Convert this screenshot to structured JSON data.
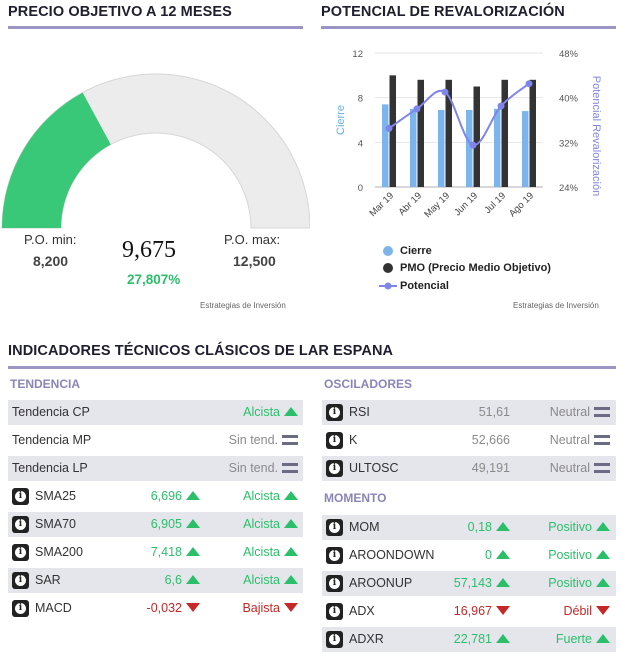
{
  "gauge_section": {
    "title": "PRECIO OBJETIVO A 12 MESES",
    "min_label": "P.O. min:",
    "min_value": "8,200",
    "max_label": "P.O. max:",
    "max_value": "12,500",
    "center_value": "9,675",
    "pct_value": "27,807%",
    "fill_fraction": 0.342,
    "source": "Estrategias de Inversión",
    "colors": {
      "fill": "#39c878",
      "track": "#ececec"
    }
  },
  "chart_section": {
    "title": "POTENCIAL DE REVALORIZACIÓN",
    "source": "Estrategias de Inversión"
  },
  "chart_data": {
    "type": "bar",
    "categories": [
      "Mar 19",
      "Abr 19",
      "May 19",
      "Jun 19",
      "Jul 19",
      "Ago 19"
    ],
    "ylabel": "Cierre",
    "y2label": "Potencial Revalorización",
    "ylim": [
      0,
      12
    ],
    "yticks": [
      "0",
      "4",
      "8",
      "12"
    ],
    "y2lim": [
      24,
      48
    ],
    "y2ticks": [
      "24%",
      "32%",
      "40%",
      "48%"
    ],
    "series": [
      {
        "name": "Cierre",
        "type": "bar",
        "axis": "left",
        "color": "#7cb5ec",
        "values": [
          7.4,
          7.0,
          6.9,
          6.9,
          7.0,
          6.8
        ]
      },
      {
        "name": "PMO (Precio Medio Objetivo)",
        "type": "bar",
        "axis": "left",
        "color": "#333333",
        "values": [
          10.0,
          9.6,
          9.6,
          9.0,
          9.6,
          9.6
        ]
      },
      {
        "name": "Potencial",
        "type": "line",
        "axis": "right",
        "color": "#8085e9",
        "values": [
          34.5,
          38.0,
          41.0,
          31.5,
          38.5,
          42.5
        ]
      }
    ],
    "grid": true,
    "legend_position": "bottom-left"
  },
  "indicators": {
    "title": "INDICADORES TÉCNICOS CLÁSICOS DE LAR ESPANA",
    "tendencia": {
      "title": "TENDENCIA",
      "rows": [
        {
          "name": "Tendencia CP",
          "info": false,
          "value": "",
          "signal": "Alcista",
          "trend": "up"
        },
        {
          "name": "Tendencia MP",
          "info": false,
          "value": "",
          "signal": "Sin tend.",
          "trend": "flat"
        },
        {
          "name": "Tendencia LP",
          "info": false,
          "value": "",
          "signal": "Sin tend.",
          "trend": "flat"
        },
        {
          "name": "SMA25",
          "info": true,
          "value": "6,696",
          "signal": "Alcista",
          "trend": "up"
        },
        {
          "name": "SMA70",
          "info": true,
          "value": "6,905",
          "signal": "Alcista",
          "trend": "up"
        },
        {
          "name": "SMA200",
          "info": true,
          "value": "7,418",
          "signal": "Alcista",
          "trend": "up"
        },
        {
          "name": "SAR",
          "info": true,
          "value": "6,6",
          "signal": "Alcista",
          "trend": "up"
        },
        {
          "name": "MACD",
          "info": true,
          "value": "-0,032",
          "signal": "Bajista",
          "trend": "down"
        }
      ]
    },
    "osciladores": {
      "title": "OSCILADORES",
      "rows": [
        {
          "name": "RSI",
          "info": true,
          "value": "51,61",
          "signal": "Neutral",
          "trend": "flat"
        },
        {
          "name": "K",
          "info": true,
          "value": "52,666",
          "signal": "Neutral",
          "trend": "flat"
        },
        {
          "name": "ULTOSC",
          "info": true,
          "value": "49,191",
          "signal": "Neutral",
          "trend": "flat"
        }
      ]
    },
    "momento": {
      "title": "MOMENTO",
      "rows": [
        {
          "name": "MOM",
          "info": true,
          "value": "0,18",
          "signal": "Positivo",
          "trend": "up"
        },
        {
          "name": "AROONDOWN",
          "info": true,
          "value": "0",
          "signal": "Positivo",
          "trend": "up"
        },
        {
          "name": "AROONUP",
          "info": true,
          "value": "57,143",
          "signal": "Positivo",
          "trend": "up"
        },
        {
          "name": "ADX",
          "info": true,
          "value": "16,967",
          "signal": "Débil",
          "trend": "down"
        },
        {
          "name": "ADXR",
          "info": true,
          "value": "22,781",
          "signal": "Fuerte",
          "trend": "up"
        }
      ]
    }
  }
}
